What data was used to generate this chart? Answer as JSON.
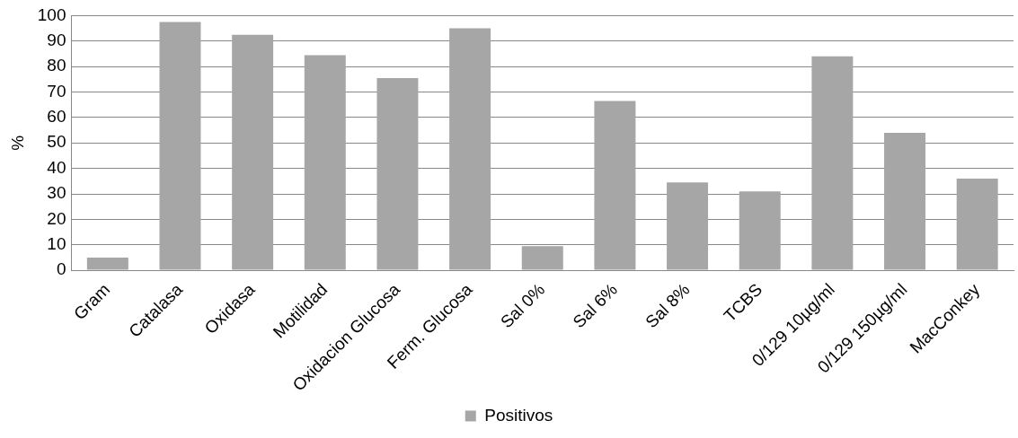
{
  "chart_data": {
    "type": "bar",
    "ylabel": "%",
    "categories": [
      "Gram",
      "Catalasa",
      "Oxidasa",
      "Motilidad",
      "Oxidacion Glucosa",
      "Ferm. Glucosa",
      "Sal 0%",
      "Sal 6%",
      "Sal 8%",
      "TCBS",
      "0/129 10µg/ml",
      "0/129 150µg/ml",
      "MacConkey"
    ],
    "series": [
      {
        "name": "Positivos",
        "color": "#a6a6a6",
        "values": [
          5,
          97.5,
          92.5,
          84.5,
          75.5,
          95,
          9.5,
          66.5,
          34.5,
          31,
          84,
          54,
          36
        ]
      }
    ],
    "ylim": [
      0,
      100
    ],
    "yticks": [
      0,
      10,
      20,
      30,
      40,
      50,
      60,
      70,
      80,
      90,
      100
    ],
    "grid": "y",
    "legend": "bottom"
  }
}
